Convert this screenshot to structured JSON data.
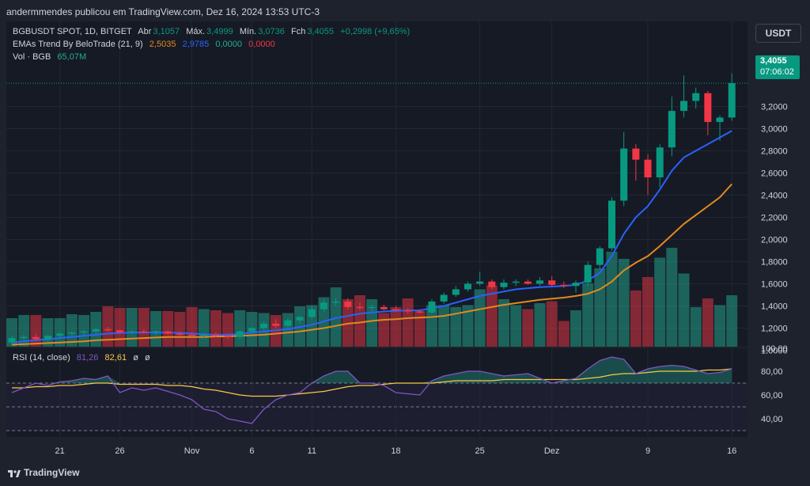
{
  "header": {
    "publisher_line": "andermmendes publicou em TradingView.com, Dez 16, 2024 13:53 UTC-3"
  },
  "legend": {
    "symbol": "BGBUSDT SPOT, 1D, BITGET",
    "open_label": "Abr",
    "open": "3,1057",
    "high_label": "Máx.",
    "high": "3,4999",
    "low_label": "Mín.",
    "low": "3,0736",
    "close_label": "Fch",
    "close": "3,4055",
    "change": "+0,2998 (+9,65%)",
    "ema_name": "EMAs Trend By BeloTrade (21, 9)",
    "ema_values": [
      "2,5035",
      "2,9785",
      "0,0000",
      "0,0000"
    ],
    "vol_label": "Vol · BGB",
    "vol_value": "65,07M",
    "rsi_label": "RSI (14, close)",
    "rsi_value": "81,26",
    "rsi_ma": "82,61",
    "rsi_extra": [
      "ø",
      "ø"
    ]
  },
  "currency_button": "USDT",
  "price_tag": {
    "price": "3,4055",
    "countdown": "07:06:02"
  },
  "footer": {
    "brand": "TradingView"
  },
  "colors": {
    "up": "#089981",
    "down": "#f23645",
    "ema_fast": "#2962ff",
    "ema_slow": "#e2891f",
    "rsi": "#7e57c2",
    "rsi_ma": "#f7c948",
    "background": "#161a25"
  },
  "chart_data": {
    "type": "candlestick",
    "price_axis": {
      "ticks": [
        "3,2000",
        "3,0000",
        "2,8000",
        "2,6000",
        "2,4000",
        "2,2000",
        "2,0000",
        "1,8000",
        "1,6000",
        "1,4000",
        "1,2000",
        "1,0000"
      ]
    },
    "rsi_axis": {
      "ticks": [
        "100,00",
        "80,00",
        "60,00",
        "40,00"
      ],
      "bands": [
        70,
        50,
        30
      ]
    },
    "x_ticks": [
      {
        "label": "21",
        "i": 4
      },
      {
        "label": "26",
        "i": 9
      },
      {
        "label": "Nov",
        "i": 15
      },
      {
        "label": "6",
        "i": 20
      },
      {
        "label": "11",
        "i": 25
      },
      {
        "label": "18",
        "i": 32
      },
      {
        "label": "25",
        "i": 39
      },
      {
        "label": "Dez",
        "i": 45
      },
      {
        "label": "9",
        "i": 53
      },
      {
        "label": "16",
        "i": 60
      }
    ],
    "candles": [
      {
        "o": 1.07,
        "h": 1.13,
        "l": 1.05,
        "c": 1.11
      },
      {
        "o": 1.11,
        "h": 1.14,
        "l": 1.09,
        "c": 1.12
      },
      {
        "o": 1.12,
        "h": 1.15,
        "l": 1.09,
        "c": 1.1
      },
      {
        "o": 1.1,
        "h": 1.14,
        "l": 1.08,
        "c": 1.13
      },
      {
        "o": 1.13,
        "h": 1.16,
        "l": 1.11,
        "c": 1.15
      },
      {
        "o": 1.15,
        "h": 1.17,
        "l": 1.13,
        "c": 1.16
      },
      {
        "o": 1.16,
        "h": 1.18,
        "l": 1.14,
        "c": 1.17
      },
      {
        "o": 1.17,
        "h": 1.2,
        "l": 1.15,
        "c": 1.19
      },
      {
        "o": 1.19,
        "h": 1.21,
        "l": 1.17,
        "c": 1.18
      },
      {
        "o": 1.18,
        "h": 1.19,
        "l": 1.15,
        "c": 1.16
      },
      {
        "o": 1.16,
        "h": 1.18,
        "l": 1.14,
        "c": 1.17
      },
      {
        "o": 1.17,
        "h": 1.19,
        "l": 1.15,
        "c": 1.16
      },
      {
        "o": 1.16,
        "h": 1.18,
        "l": 1.14,
        "c": 1.17
      },
      {
        "o": 1.17,
        "h": 1.18,
        "l": 1.14,
        "c": 1.15
      },
      {
        "o": 1.15,
        "h": 1.17,
        "l": 1.13,
        "c": 1.14
      },
      {
        "o": 1.14,
        "h": 1.16,
        "l": 1.12,
        "c": 1.13
      },
      {
        "o": 1.13,
        "h": 1.15,
        "l": 1.11,
        "c": 1.14
      },
      {
        "o": 1.14,
        "h": 1.16,
        "l": 1.12,
        "c": 1.13
      },
      {
        "o": 1.13,
        "h": 1.15,
        "l": 1.1,
        "c": 1.12
      },
      {
        "o": 1.12,
        "h": 1.18,
        "l": 1.1,
        "c": 1.17
      },
      {
        "o": 1.17,
        "h": 1.21,
        "l": 1.15,
        "c": 1.2
      },
      {
        "o": 1.2,
        "h": 1.26,
        "l": 1.18,
        "c": 1.24
      },
      {
        "o": 1.24,
        "h": 1.28,
        "l": 1.2,
        "c": 1.22
      },
      {
        "o": 1.22,
        "h": 1.29,
        "l": 1.2,
        "c": 1.27
      },
      {
        "o": 1.27,
        "h": 1.31,
        "l": 1.24,
        "c": 1.3
      },
      {
        "o": 1.3,
        "h": 1.4,
        "l": 1.28,
        "c": 1.37
      },
      {
        "o": 1.37,
        "h": 1.46,
        "l": 1.35,
        "c": 1.43
      },
      {
        "o": 1.43,
        "h": 1.47,
        "l": 1.4,
        "c": 1.44
      },
      {
        "o": 1.44,
        "h": 1.47,
        "l": 1.37,
        "c": 1.39
      },
      {
        "o": 1.39,
        "h": 1.43,
        "l": 1.36,
        "c": 1.38
      },
      {
        "o": 1.38,
        "h": 1.41,
        "l": 1.35,
        "c": 1.39
      },
      {
        "o": 1.39,
        "h": 1.41,
        "l": 1.36,
        "c": 1.37
      },
      {
        "o": 1.37,
        "h": 1.4,
        "l": 1.35,
        "c": 1.36
      },
      {
        "o": 1.36,
        "h": 1.38,
        "l": 1.33,
        "c": 1.35
      },
      {
        "o": 1.35,
        "h": 1.37,
        "l": 1.33,
        "c": 1.34
      },
      {
        "o": 1.34,
        "h": 1.46,
        "l": 1.33,
        "c": 1.44
      },
      {
        "o": 1.44,
        "h": 1.52,
        "l": 1.42,
        "c": 1.5
      },
      {
        "o": 1.5,
        "h": 1.58,
        "l": 1.48,
        "c": 1.55
      },
      {
        "o": 1.55,
        "h": 1.62,
        "l": 1.53,
        "c": 1.6
      },
      {
        "o": 1.6,
        "h": 1.71,
        "l": 1.58,
        "c": 1.62
      },
      {
        "o": 1.62,
        "h": 1.64,
        "l": 1.55,
        "c": 1.57
      },
      {
        "o": 1.57,
        "h": 1.64,
        "l": 1.55,
        "c": 1.61
      },
      {
        "o": 1.61,
        "h": 1.64,
        "l": 1.58,
        "c": 1.62
      },
      {
        "o": 1.62,
        "h": 1.64,
        "l": 1.59,
        "c": 1.6
      },
      {
        "o": 1.6,
        "h": 1.66,
        "l": 1.58,
        "c": 1.63
      },
      {
        "o": 1.63,
        "h": 1.67,
        "l": 1.58,
        "c": 1.59
      },
      {
        "o": 1.59,
        "h": 1.62,
        "l": 1.56,
        "c": 1.58
      },
      {
        "o": 1.58,
        "h": 1.63,
        "l": 1.52,
        "c": 1.61
      },
      {
        "o": 1.61,
        "h": 1.8,
        "l": 1.58,
        "c": 1.77
      },
      {
        "o": 1.77,
        "h": 1.94,
        "l": 1.73,
        "c": 1.92
      },
      {
        "o": 1.92,
        "h": 2.38,
        "l": 1.9,
        "c": 2.35
      },
      {
        "o": 2.35,
        "h": 2.97,
        "l": 2.3,
        "c": 2.82
      },
      {
        "o": 2.82,
        "h": 2.86,
        "l": 2.53,
        "c": 2.72
      },
      {
        "o": 2.72,
        "h": 2.77,
        "l": 2.4,
        "c": 2.56
      },
      {
        "o": 2.56,
        "h": 2.86,
        "l": 2.47,
        "c": 2.83
      },
      {
        "o": 2.83,
        "h": 3.29,
        "l": 2.75,
        "c": 3.16
      },
      {
        "o": 3.16,
        "h": 3.48,
        "l": 3.1,
        "c": 3.25
      },
      {
        "o": 3.25,
        "h": 3.37,
        "l": 3.18,
        "c": 3.32
      },
      {
        "o": 3.32,
        "h": 3.34,
        "l": 2.94,
        "c": 3.06
      },
      {
        "o": 3.06,
        "h": 3.12,
        "l": 2.89,
        "c": 3.1
      },
      {
        "o": 3.1,
        "h": 3.5,
        "l": 3.07,
        "c": 3.41
      }
    ],
    "volume_axis_max": 2.2,
    "volume": [
      0.72,
      0.8,
      0.8,
      0.72,
      0.72,
      0.82,
      0.8,
      0.88,
      1.02,
      0.98,
      0.98,
      0.98,
      0.9,
      0.9,
      0.88,
      1.0,
      0.95,
      0.92,
      0.85,
      0.92,
      0.88,
      0.85,
      0.8,
      0.85,
      1.02,
      1.05,
      1.25,
      1.5,
      1.2,
      1.3,
      1.2,
      0.85,
      1.0,
      1.22,
      0.9,
      1.05,
      1.05,
      1.0,
      1.05,
      1.45,
      1.55,
      1.2,
      1.05,
      0.95,
      1.1,
      1.15,
      0.65,
      0.92,
      1.6,
      1.98,
      2.4,
      2.22,
      1.42,
      1.76,
      2.25,
      2.5,
      1.85,
      1.0,
      1.22,
      1.05,
      1.3
    ],
    "ema_fast": [
      1.07,
      1.08,
      1.09,
      1.1,
      1.11,
      1.12,
      1.13,
      1.14,
      1.15,
      1.155,
      1.16,
      1.16,
      1.16,
      1.16,
      1.155,
      1.15,
      1.145,
      1.14,
      1.14,
      1.15,
      1.16,
      1.17,
      1.18,
      1.19,
      1.21,
      1.23,
      1.26,
      1.29,
      1.31,
      1.33,
      1.34,
      1.35,
      1.355,
      1.36,
      1.36,
      1.38,
      1.4,
      1.43,
      1.46,
      1.49,
      1.51,
      1.53,
      1.55,
      1.56,
      1.57,
      1.575,
      1.58,
      1.59,
      1.63,
      1.7,
      1.85,
      2.05,
      2.2,
      2.3,
      2.45,
      2.62,
      2.74,
      2.8,
      2.86,
      2.92,
      2.98
    ],
    "ema_slow": [
      1.05,
      1.055,
      1.06,
      1.065,
      1.07,
      1.075,
      1.08,
      1.09,
      1.095,
      1.1,
      1.105,
      1.11,
      1.115,
      1.12,
      1.12,
      1.12,
      1.12,
      1.125,
      1.125,
      1.13,
      1.135,
      1.14,
      1.15,
      1.16,
      1.17,
      1.185,
      1.2,
      1.22,
      1.24,
      1.25,
      1.265,
      1.275,
      1.28,
      1.29,
      1.295,
      1.3,
      1.31,
      1.33,
      1.35,
      1.37,
      1.39,
      1.41,
      1.425,
      1.44,
      1.455,
      1.465,
      1.475,
      1.49,
      1.51,
      1.55,
      1.62,
      1.72,
      1.79,
      1.85,
      1.94,
      2.04,
      2.14,
      2.22,
      2.3,
      2.38,
      2.5
    ],
    "rsi": [
      62,
      66,
      70,
      68,
      71,
      72,
      74,
      73,
      76,
      62,
      66,
      64,
      66,
      63,
      60,
      56,
      48,
      46,
      40,
      38,
      36,
      48,
      56,
      60,
      62,
      70,
      76,
      80,
      80,
      70,
      70,
      68,
      62,
      61,
      60,
      72,
      76,
      78,
      80,
      80,
      78,
      76,
      77,
      78,
      74,
      70,
      72,
      74,
      82,
      89,
      92,
      90,
      78,
      82,
      84,
      85,
      84,
      81,
      78,
      79,
      82
    ],
    "rsi_ma": [
      66,
      66,
      67,
      67,
      68,
      68,
      69,
      70,
      70,
      69,
      69,
      69,
      69,
      68,
      68,
      67,
      65,
      64,
      62,
      60,
      59,
      59,
      59,
      60,
      61,
      62,
      63,
      65,
      67,
      68,
      68,
      69,
      70,
      70,
      70,
      70,
      71,
      72,
      72,
      72,
      72,
      73,
      73,
      73,
      73,
      73,
      73,
      73,
      74,
      75,
      77,
      78,
      78,
      79,
      80,
      80,
      80,
      80,
      81,
      81,
      82
    ]
  }
}
